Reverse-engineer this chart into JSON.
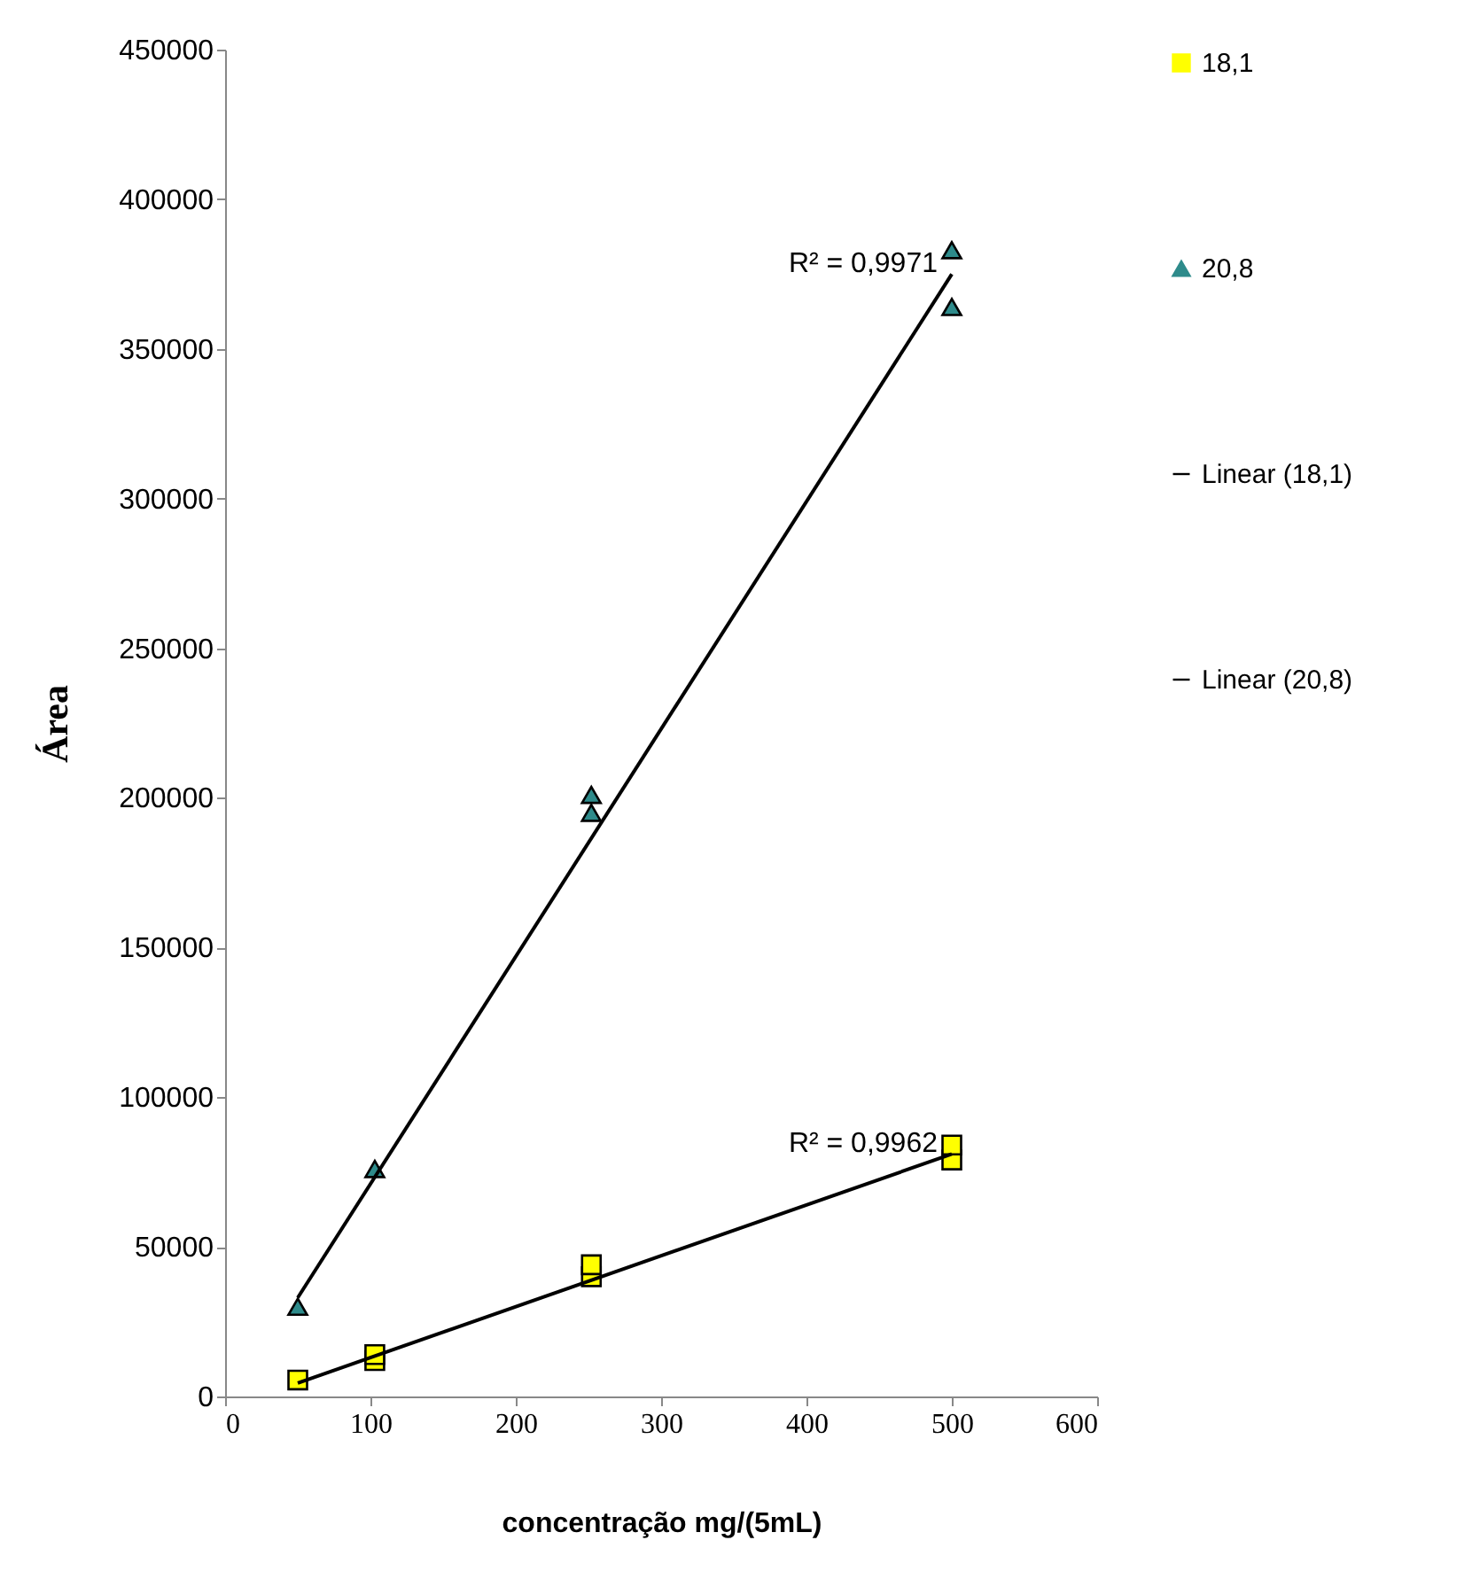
{
  "chart_data": {
    "type": "scatter",
    "xlabel": "concentração mg/(5mL)",
    "ylabel": "Área",
    "xlim": [
      0,
      600
    ],
    "xticks": [
      0,
      100,
      200,
      300,
      400,
      500,
      600
    ],
    "ylim": [
      0,
      450000
    ],
    "yticks": [
      0,
      50000,
      100000,
      150000,
      200000,
      250000,
      300000,
      350000,
      400000,
      450000
    ],
    "grid": false,
    "legend": "right",
    "series": [
      {
        "name": "18,1",
        "marker": "square",
        "color": "#ffff00",
        "x": [
          50,
          103,
          103,
          252,
          252,
          500,
          500
        ],
        "values": [
          5500,
          12000,
          14000,
          40000,
          44000,
          79000,
          84000
        ]
      },
      {
        "name": "20,8",
        "marker": "triangle",
        "color": "#2e8b8b",
        "x": [
          50,
          103,
          252,
          252,
          500,
          500
        ],
        "values": [
          30000,
          76000,
          195000,
          201000,
          364000,
          383000
        ]
      },
      {
        "name": "Linear (18,1)",
        "type": "line",
        "color": "#000000",
        "x": [
          50,
          500
        ],
        "values": [
          4500,
          81000
        ]
      },
      {
        "name": "Linear (20,8)",
        "type": "line",
        "color": "#000000",
        "x": [
          50,
          500
        ],
        "values": [
          33000,
          375000
        ]
      }
    ],
    "annotations": [
      {
        "text": "R² = 0,9971",
        "x": 500,
        "y": 375000
      },
      {
        "text": "R² = 0,9962",
        "x": 500,
        "y": 81000
      }
    ]
  }
}
